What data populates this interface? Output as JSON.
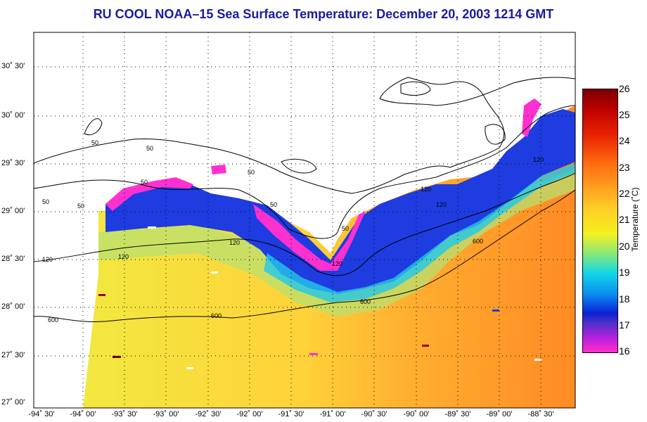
{
  "title": "RU COOL  NOAA–15  Sea Surface Temperature:  December 20, 2003 1214 GMT",
  "y_axis_labels": [
    "30˚ 30'",
    "30˚ 00'",
    "29˚ 30'",
    "29˚ 00'",
    "28˚ 30'",
    "28˚ 00'",
    "27˚ 30'",
    "27˚ 00'"
  ],
  "x_axis_labels": [
    "-94˚ 30'",
    "-94˚ 00'",
    "-93˚ 30'",
    "-93˚ 00'",
    "-92˚ 30'",
    "-92˚ 00'",
    "-91˚ 30'",
    "-91˚ 00'",
    "-90˚ 30'",
    "-90˚ 00'",
    "-89˚ 30'",
    "-89˚ 00'",
    "-88˚ 30'"
  ],
  "colorbar": {
    "title": "Temperature (˚C)",
    "ticks": [
      "26",
      "25",
      "24",
      "23",
      "22",
      "21",
      "20",
      "19",
      "18",
      "17",
      "16"
    ],
    "min": 16,
    "max": 26
  },
  "contour_labels": [
    {
      "text": "50"
    },
    {
      "text": "50"
    },
    {
      "text": "50"
    },
    {
      "text": "50"
    },
    {
      "text": "50"
    },
    {
      "text": "50"
    },
    {
      "text": "50"
    },
    {
      "text": "50"
    },
    {
      "text": "120"
    },
    {
      "text": "120"
    },
    {
      "text": "120"
    },
    {
      "text": "120"
    },
    {
      "text": "120"
    },
    {
      "text": "120"
    },
    {
      "text": "120"
    },
    {
      "text": "600"
    },
    {
      "text": "600"
    },
    {
      "text": "600"
    },
    {
      "text": "600"
    }
  ],
  "colors": {
    "title": "#1a1aa0",
    "land": "#ffffff",
    "warm_gulf": "#ff9a28",
    "shelf_cold": "#1a30e0",
    "coastal_coldest": "#ff30d0"
  }
}
